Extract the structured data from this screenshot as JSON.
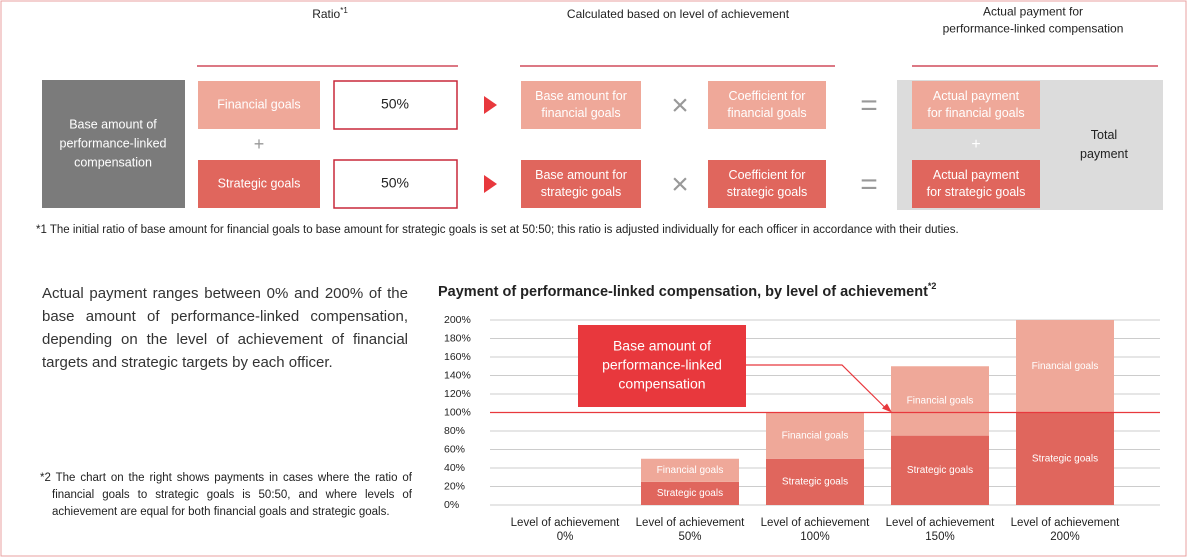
{
  "headers": {
    "ratio": "Ratio",
    "ratio_note": "*1",
    "calculated": "Calculated based on level of achievement",
    "actual": [
      "Actual payment for",
      "performance-linked compensation"
    ]
  },
  "base_box": [
    "Base amount of",
    "performance-linked",
    "compensation"
  ],
  "operators": {
    "plus": "+",
    "times": "×",
    "equals": "="
  },
  "rows": [
    {
      "goal": "Financial goals",
      "ratio": "50%",
      "base": [
        "Base amount for",
        "financial goals"
      ],
      "coefficient": [
        "Coefficient for",
        "financial goals"
      ],
      "payment": [
        "Actual payment",
        "for financial goals"
      ]
    },
    {
      "goal": "Strategic goals",
      "ratio": "50%",
      "base": [
        "Base amount for",
        "strategic goals"
      ],
      "coefficient": [
        "Coefficient for",
        "strategic goals"
      ],
      "payment": [
        "Actual payment",
        "for strategic goals"
      ]
    }
  ],
  "total": [
    "Total",
    "payment"
  ],
  "footnote1": "*1 The initial ratio of base amount for financial goals to base amount for strategic goals is set at 50:50; this ratio is adjusted individually for each officer in accordance with their duties.",
  "paragraph": "Actual payment ranges between 0% and 200% of the base amount of performance-linked compensation, depending on the level of achievement of financial targets and strategic targets by each officer.",
  "footnote2": "*2 The chart on the right shows payments in cases where the ratio of financial goals to strategic goals is 50:50, and where levels of achievement are equal for both financial goals and strategic goals.",
  "chart_data": {
    "type": "stacked_bar",
    "title": "Payment of performance-linked compensation, by level of achievement",
    "title_note": "*2",
    "categories": [
      [
        "Level of achievement",
        "0%"
      ],
      [
        "Level of achievement",
        "50%"
      ],
      [
        "Level of achievement",
        "100%"
      ],
      [
        "Level of achievement",
        "150%"
      ],
      [
        "Level of achievement",
        "200%"
      ]
    ],
    "series": [
      {
        "name": "Strategic goals",
        "color": "#e0665d",
        "values": [
          0,
          25,
          50,
          75,
          100
        ]
      },
      {
        "name": "Financial goals",
        "color": "#efa899",
        "values": [
          0,
          25,
          50,
          75,
          100
        ]
      }
    ],
    "ylim": [
      0,
      200
    ],
    "yticks": [
      {
        "value": 0,
        "label": "0%"
      },
      {
        "value": 20,
        "label": "20%"
      },
      {
        "value": 40,
        "label": "40%"
      },
      {
        "value": 60,
        "label": "60%"
      },
      {
        "value": 80,
        "label": "80%"
      },
      {
        "value": 100,
        "label": "100%"
      },
      {
        "value": 120,
        "label": "120%"
      },
      {
        "value": 140,
        "label": "140%"
      },
      {
        "value": 160,
        "label": "160%"
      },
      {
        "value": 180,
        "label": "180%"
      },
      {
        "value": 200,
        "label": "200%"
      }
    ],
    "grid": true,
    "reference_line": {
      "value": 100,
      "color": "#e8383d"
    },
    "annotation": [
      "Base amount of",
      "performance-linked",
      "compensation"
    ]
  }
}
